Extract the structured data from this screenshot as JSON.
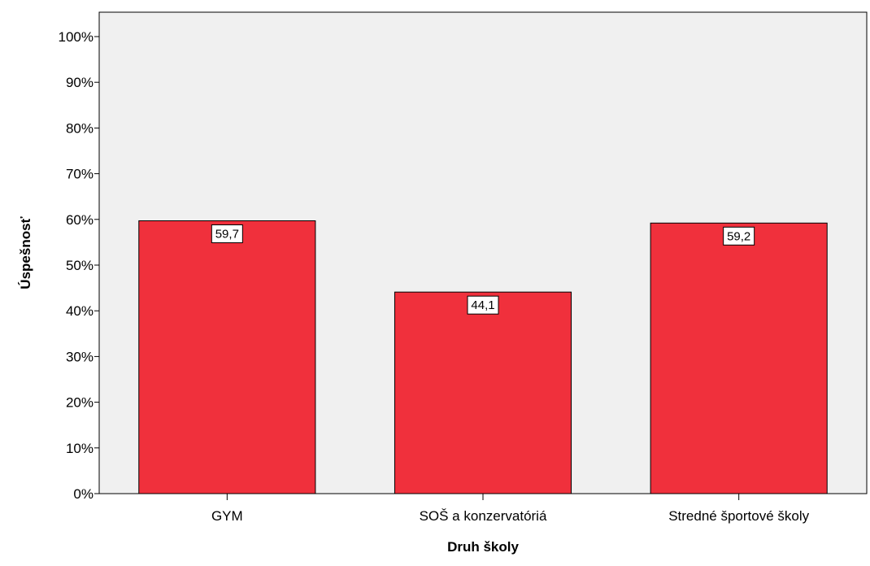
{
  "chart_data": {
    "type": "bar",
    "categories": [
      "GYM",
      "SOŠ a konzervatóriá",
      "Stredné športové školy"
    ],
    "values": [
      59.7,
      44.1,
      59.2
    ],
    "data_labels": [
      "59,7",
      "44,1",
      "59,2"
    ],
    "title": "",
    "xlabel": "Druh školy",
    "ylabel": "Úspešnosť",
    "ylim": [
      0,
      100
    ],
    "yticks": [
      0,
      10,
      20,
      30,
      40,
      50,
      60,
      70,
      80,
      90,
      100
    ],
    "ytick_labels": [
      "0%",
      "10%",
      "20%",
      "30%",
      "40%",
      "50%",
      "60%",
      "70%",
      "80%",
      "90%",
      "100%"
    ],
    "grid": false,
    "legend": "none",
    "colors": {
      "bar_fill": "#f0303c",
      "bar_stroke": "#000000",
      "plot_background": "#f0f0f0",
      "page_background": "#ffffff"
    }
  }
}
